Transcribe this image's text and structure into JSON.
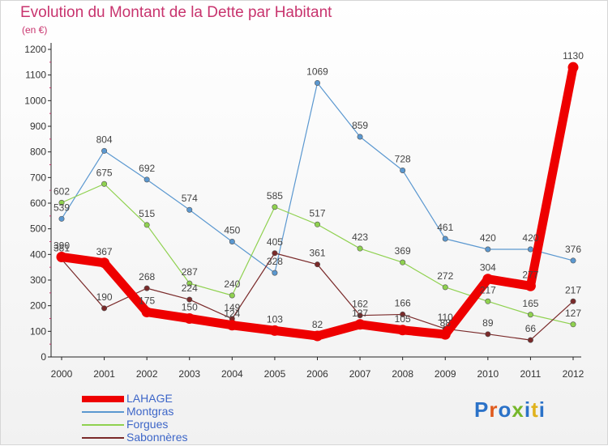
{
  "header": {
    "title": "Evolution du Montant de la Dette par Habitant",
    "subtitle": "(en €)"
  },
  "logo": {
    "text": "Proxiti",
    "colors": [
      "#2b72c8",
      "#e05a1c",
      "#2b72c8",
      "#76b72a",
      "#2b72c8",
      "#e0b21c",
      "#2b72c8"
    ]
  },
  "chart_data": {
    "type": "line",
    "x": [
      "2000",
      "2001",
      "2002",
      "2003",
      "2004",
      "2005",
      "2006",
      "2007",
      "2008",
      "2009",
      "2010",
      "2011",
      "2012"
    ],
    "ylim": [
      0,
      1200
    ],
    "yticks": [
      0,
      100,
      200,
      300,
      400,
      500,
      600,
      700,
      800,
      900,
      1000,
      1100,
      1200
    ],
    "grid": false,
    "legend_position": "bottom-left",
    "series": [
      {
        "name": "LAHAGE",
        "color": "#ee0000",
        "values": [
          390,
          367,
          175,
          150,
          124,
          103,
          82,
          127,
          105,
          88,
          304,
          277,
          1130
        ],
        "labels": [
          "390",
          "367",
          "175",
          "150",
          "124",
          "103",
          "82",
          "127",
          "105",
          "88",
          "304",
          "277",
          "1130"
        ]
      },
      {
        "name": "Montgras",
        "color": "#5b98d0",
        "values": [
          539,
          804,
          692,
          574,
          450,
          328,
          1069,
          859,
          728,
          461,
          420,
          420,
          376
        ],
        "labels": [
          "539",
          "804",
          "692",
          "574",
          "450",
          "328",
          "1069",
          "859",
          "728",
          "461",
          "420",
          "420",
          "376"
        ]
      },
      {
        "name": "Forgues",
        "color": "#8fd14f",
        "values": [
          602,
          675,
          515,
          287,
          240,
          585,
          517,
          423,
          369,
          272,
          217,
          165,
          127
        ],
        "labels": [
          "602",
          "675",
          "515",
          "287",
          "240",
          "585",
          "517",
          "423",
          "369",
          "272",
          "217",
          "165",
          "127"
        ]
      },
      {
        "name": "Sabonnères",
        "color": "#7a2a2a",
        "values": [
          381,
          190,
          268,
          224,
          149,
          405,
          361,
          162,
          166,
          110,
          89,
          66,
          217
        ],
        "labels": [
          "381",
          "190",
          "268",
          "224",
          "149",
          "405",
          "361",
          "162",
          "166",
          "110",
          "89",
          "66",
          "217"
        ]
      }
    ]
  }
}
